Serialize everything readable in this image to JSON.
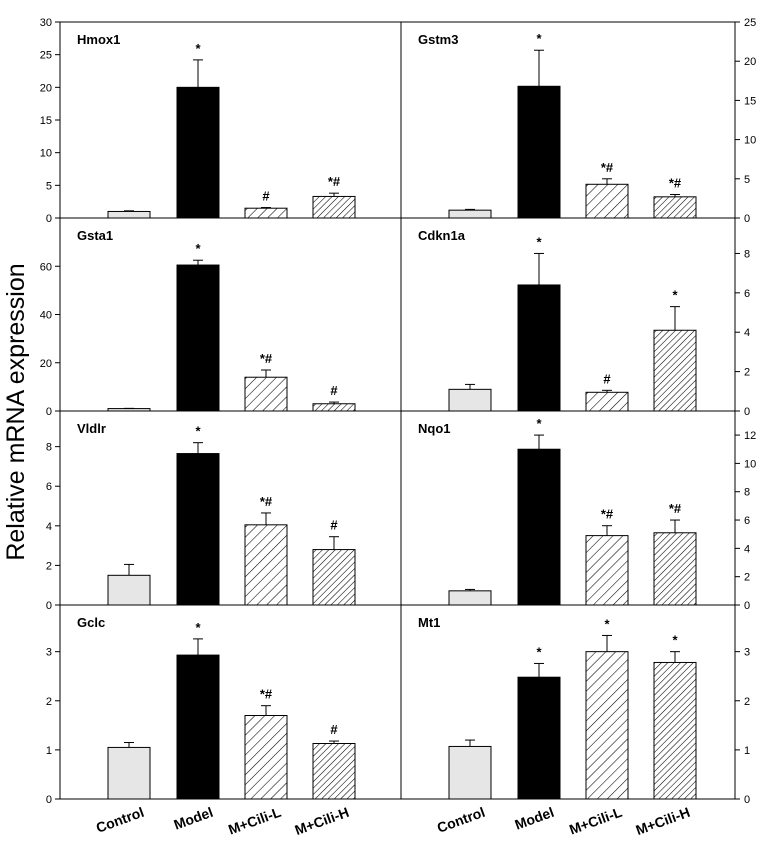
{
  "figure": {
    "ylabel": "Relative mRNA expression",
    "categories": [
      "Control",
      "Model",
      "M+Cili-L",
      "M+Cili-H"
    ],
    "colors": {
      "control": "#e6e6e6",
      "model": "#000000",
      "hatched": "#ffffff",
      "stroke": "#000000"
    }
  },
  "chart_data": [
    {
      "type": "bar",
      "title": "Hmox1",
      "categories": [
        "Control",
        "Model",
        "M+Cili-L",
        "M+Cili-H"
      ],
      "values": [
        1.0,
        20.0,
        1.5,
        3.3
      ],
      "errors": [
        0.1,
        4.2,
        0.1,
        0.5
      ],
      "annotations": [
        "",
        "*",
        "#",
        "*#"
      ],
      "ylim": [
        0,
        30
      ],
      "yticks": [
        0,
        5,
        10,
        15,
        20,
        25,
        30
      ],
      "ytick_labels": [
        "0",
        "5",
        "10",
        "15",
        "20",
        "25",
        "30"
      ],
      "yaxis": "left"
    },
    {
      "type": "bar",
      "title": "Gstm3",
      "categories": [
        "Control",
        "Model",
        "M+Cili-L",
        "M+Cili-H"
      ],
      "values": [
        1.0,
        16.8,
        4.3,
        2.7
      ],
      "errors": [
        0.1,
        4.6,
        0.7,
        0.3
      ],
      "annotations": [
        "",
        "*",
        "*#",
        "*#"
      ],
      "ylim": [
        0,
        25
      ],
      "yticks": [
        0,
        5,
        10,
        15,
        20,
        25
      ],
      "ytick_labels": [
        "0",
        "5",
        "10",
        "15",
        "20",
        "25"
      ],
      "yaxis": "right"
    },
    {
      "type": "bar",
      "title": "Gsta1",
      "categories": [
        "Control",
        "Model",
        "M+Cili-L",
        "M+Cili-H"
      ],
      "values": [
        1.0,
        60.5,
        14.0,
        3.0
      ],
      "errors": [
        0.1,
        2.0,
        3.0,
        0.7
      ],
      "annotations": [
        "",
        "*",
        "*#",
        "#"
      ],
      "ylim": [
        0,
        80
      ],
      "yticks": [
        0,
        20,
        40,
        60
      ],
      "ytick_labels": [
        "0",
        "20",
        "40",
        "60"
      ],
      "yaxis": "left"
    },
    {
      "type": "bar",
      "title": "Cdkn1a",
      "categories": [
        "Control",
        "Model",
        "M+Cili-L",
        "M+Cili-H"
      ],
      "values": [
        1.1,
        6.4,
        0.95,
        4.1
      ],
      "errors": [
        0.25,
        1.6,
        0.1,
        1.2
      ],
      "annotations": [
        "",
        "*",
        "#",
        "*"
      ],
      "ylim": [
        0,
        9.8
      ],
      "yticks": [
        0,
        2,
        4,
        6,
        8
      ],
      "ytick_labels": [
        "0",
        "2",
        "4",
        "6",
        "8"
      ],
      "yaxis": "right"
    },
    {
      "type": "bar",
      "title": "Vldlr",
      "categories": [
        "Control",
        "Model",
        "M+Cili-L",
        "M+Cili-H"
      ],
      "values": [
        1.5,
        7.65,
        4.05,
        2.8
      ],
      "errors": [
        0.55,
        0.55,
        0.6,
        0.65
      ],
      "annotations": [
        "",
        "*",
        "*#",
        "#"
      ],
      "ylim": [
        0,
        9.8
      ],
      "yticks": [
        0,
        2,
        4,
        6,
        8
      ],
      "ytick_labels": [
        "0",
        "2",
        "4",
        "6",
        "8"
      ],
      "yaxis": "left"
    },
    {
      "type": "bar",
      "title": "Nqo1",
      "categories": [
        "Control",
        "Model",
        "M+Cili-L",
        "M+Cili-H"
      ],
      "values": [
        1.0,
        11.0,
        4.9,
        5.1
      ],
      "errors": [
        0.1,
        1.0,
        0.7,
        0.9
      ],
      "annotations": [
        "",
        "*",
        "*#",
        "*#"
      ],
      "ylim": [
        0,
        13.7
      ],
      "yticks": [
        0,
        2,
        4,
        6,
        8,
        10,
        12
      ],
      "ytick_labels": [
        "0",
        "2",
        "4",
        "6",
        "8",
        "10",
        "12"
      ],
      "yaxis": "right"
    },
    {
      "type": "bar",
      "title": "Gclc",
      "categories": [
        "Control",
        "Model",
        "M+Cili-L",
        "M+Cili-H"
      ],
      "values": [
        1.05,
        2.93,
        1.7,
        1.13
      ],
      "errors": [
        0.1,
        0.33,
        0.2,
        0.05
      ],
      "annotations": [
        "",
        "*",
        "*#",
        "#"
      ],
      "ylim": [
        0,
        3.95
      ],
      "yticks": [
        0,
        1,
        2,
        3
      ],
      "ytick_labels": [
        "0",
        "1",
        "2",
        "3"
      ],
      "yaxis": "left"
    },
    {
      "type": "bar",
      "title": "Mt1",
      "categories": [
        "Control",
        "Model",
        "M+Cili-L",
        "M+Cili-H"
      ],
      "values": [
        1.07,
        2.48,
        3.0,
        2.78
      ],
      "errors": [
        0.13,
        0.28,
        0.33,
        0.22
      ],
      "annotations": [
        "",
        "*",
        "*",
        "*"
      ],
      "ylim": [
        0,
        3.95
      ],
      "yticks": [
        0,
        1,
        2,
        3
      ],
      "ytick_labels": [
        "0",
        "1",
        "2",
        "3"
      ],
      "yaxis": "right"
    }
  ]
}
